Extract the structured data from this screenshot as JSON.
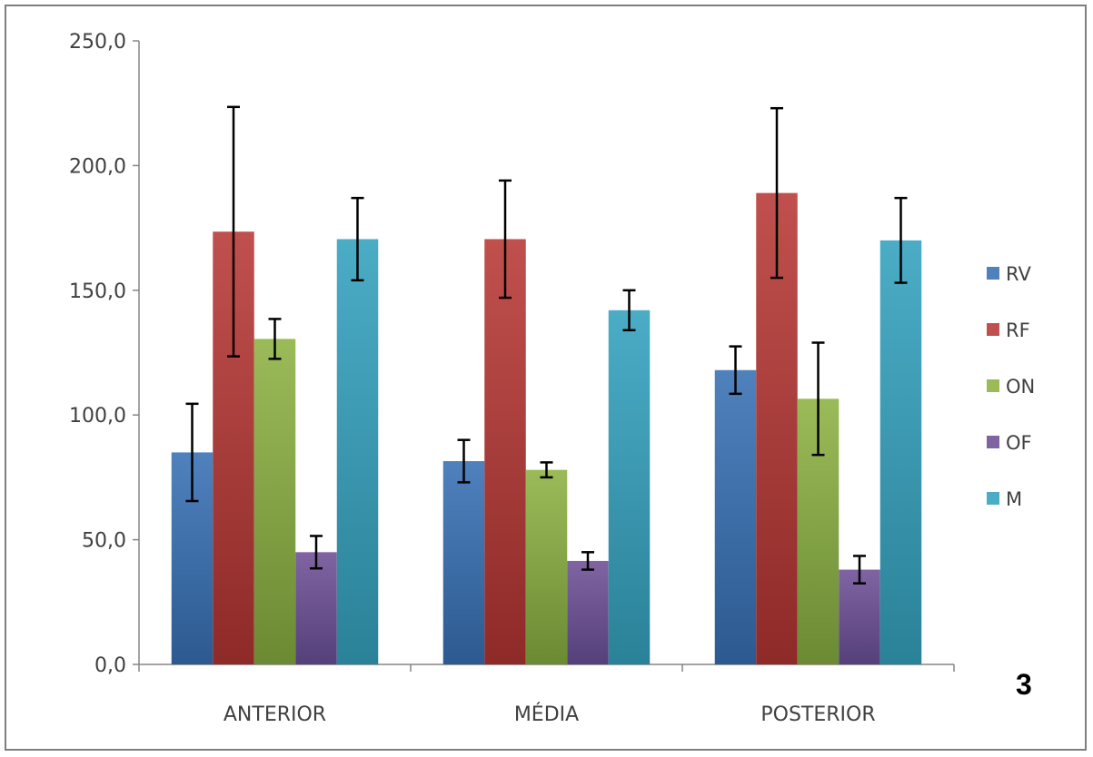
{
  "panel_label": "3",
  "chart_data": {
    "type": "bar",
    "categories": [
      "ANTERIOR",
      "MÉDIA",
      "POSTERIOR"
    ],
    "y_ticks": [
      "0,0",
      "50,0",
      "100,0",
      "150,0",
      "200,0",
      "250,0"
    ],
    "ylim": [
      0,
      250
    ],
    "grid": false,
    "legend_position": "right",
    "series": [
      {
        "name": "RV",
        "color": "#4f81bd",
        "color_dark": "#2c5a90",
        "values": [
          85.0,
          81.5,
          118.0
        ],
        "errors": [
          19.5,
          8.5,
          9.5
        ]
      },
      {
        "name": "RF",
        "color": "#c0504d",
        "color_dark": "#8e2a28",
        "values": [
          173.5,
          170.5,
          189.0
        ],
        "errors": [
          50.0,
          23.5,
          34.0
        ]
      },
      {
        "name": "ON",
        "color": "#9bbb59",
        "color_dark": "#6b8a33",
        "values": [
          130.5,
          78.0,
          106.5
        ],
        "errors": [
          8.0,
          3.0,
          22.5
        ]
      },
      {
        "name": "OF",
        "color": "#8064a2",
        "color_dark": "#55407a",
        "values": [
          45.0,
          41.5,
          38.0
        ],
        "errors": [
          6.5,
          3.5,
          5.5
        ]
      },
      {
        "name": "M",
        "color": "#4bacc6",
        "color_dark": "#2a8298",
        "values": [
          170.5,
          142.0,
          170.0
        ],
        "errors": [
          16.5,
          8.0,
          17.0
        ]
      }
    ]
  }
}
